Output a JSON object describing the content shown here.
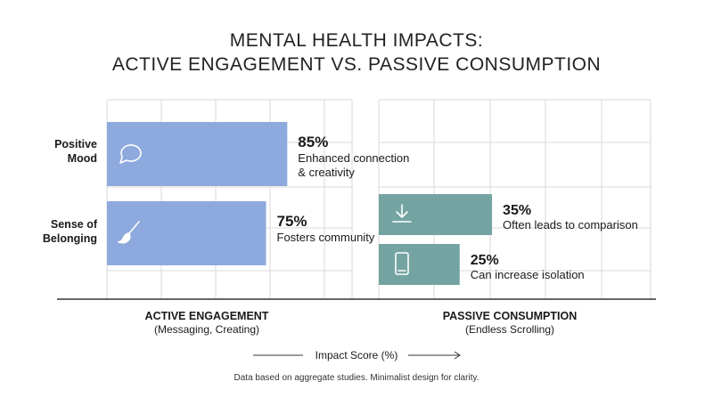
{
  "title_line1": "MENTAL HEALTH IMPACTS:",
  "title_line2": "ACTIVE ENGAGEMENT VS. PASSIVE CONSUMPTION",
  "footnote": "Data based on aggregate studies. Minimalist design for clarity.",
  "colors": {
    "active": "#8ea9dd",
    "passive": "#73a4a1",
    "grid": "#d9d9d9",
    "axis": "#333333"
  },
  "chart_data": {
    "type": "bar",
    "orientation": "horizontal",
    "xlabel": "Impact Score (%)",
    "grid": true,
    "panels": [
      {
        "name": "ACTIVE ENGAGEMENT",
        "subtitle": "(Messaging, Creating)",
        "bars": [
          {
            "category": "Positive Mood",
            "value": 85,
            "value_label": "85%",
            "note": [
              "Enhanced connection",
              "& creativity"
            ],
            "icon": "speech-bubble-icon"
          },
          {
            "category": "Sense of Belonging",
            "value": 75,
            "value_label": "75%",
            "note": [
              "Fosters community"
            ],
            "icon": "paintbrush-icon"
          }
        ]
      },
      {
        "name": "PASSIVE CONSUMPTION",
        "subtitle": "(Endless Scrolling)",
        "bars": [
          {
            "value": 35,
            "value_label": "35%",
            "note": [
              "Often leads to comparison"
            ],
            "icon": "download-arrow-icon"
          },
          {
            "value": 25,
            "value_label": "25%",
            "note": [
              "Can increase isolation"
            ],
            "icon": "smartphone-icon"
          }
        ]
      }
    ],
    "row_labels": [
      [
        "Positive",
        "Mood"
      ],
      [
        "Sense of",
        "Belonging"
      ]
    ]
  }
}
